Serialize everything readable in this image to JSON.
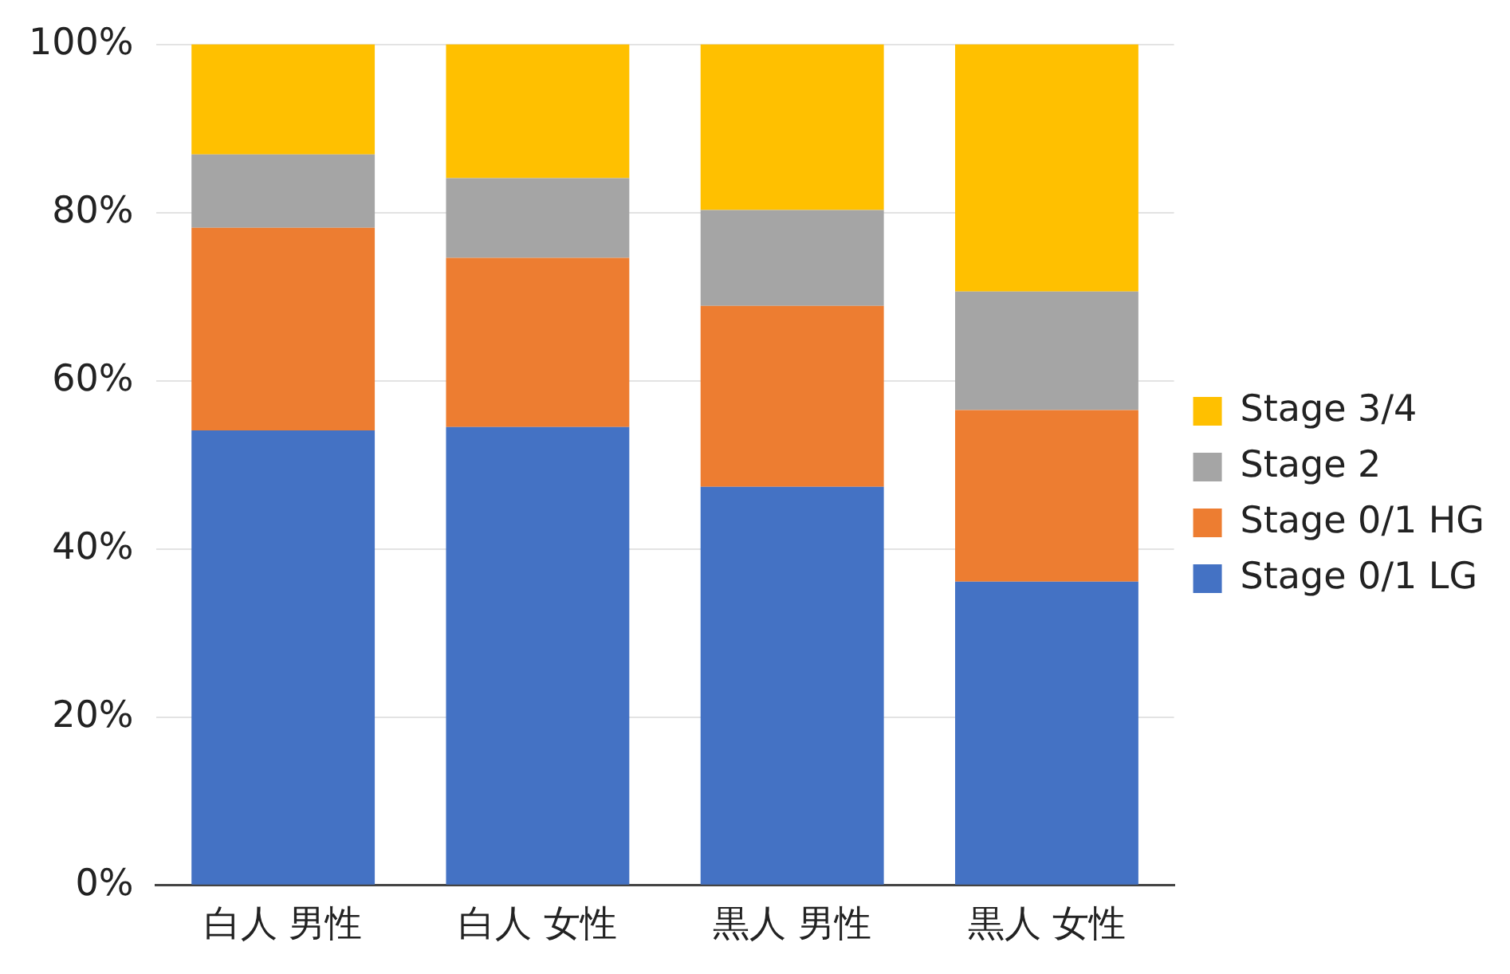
{
  "chart_data": {
    "type": "bar",
    "stacked": true,
    "categories": [
      "白人 男性",
      "白人 女性",
      "黒人 男性",
      "黒人 女性"
    ],
    "series": [
      {
        "name": "Stage 0/1 LG",
        "color": "#4472c4",
        "values": [
          54.1,
          54.5,
          47.4,
          36.1
        ]
      },
      {
        "name": "Stage 0/1 HG",
        "color": "#ed7d31",
        "values": [
          24.1,
          20.1,
          21.5,
          20.4
        ]
      },
      {
        "name": "Stage 2",
        "color": "#a5a5a5",
        "values": [
          8.7,
          9.5,
          11.4,
          14.1
        ]
      },
      {
        "name": "Stage 3/4",
        "color": "#ffc000",
        "values": [
          13.1,
          15.9,
          19.7,
          29.4
        ]
      }
    ],
    "ylim": [
      0,
      100
    ],
    "yticks": [
      {
        "value": 0,
        "label": "0%"
      },
      {
        "value": 20,
        "label": "20%"
      },
      {
        "value": 40,
        "label": "40%"
      },
      {
        "value": 60,
        "label": "60%"
      },
      {
        "value": 80,
        "label": "80%"
      },
      {
        "value": 100,
        "label": "100%"
      }
    ],
    "grid": "y",
    "legend": "right"
  }
}
